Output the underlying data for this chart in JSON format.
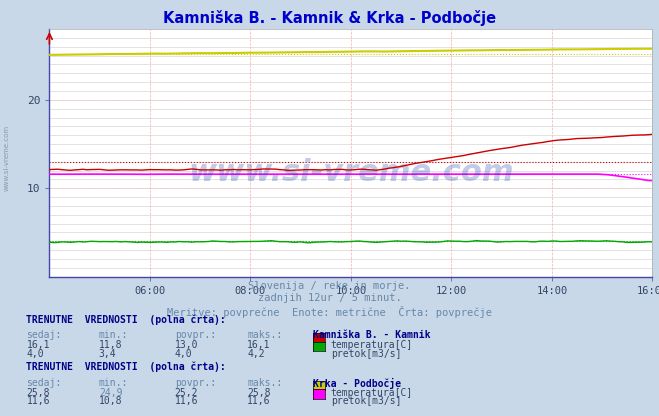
{
  "title": "Kamniška B. - Kamnik & Krka - Podbočje",
  "title_color": "#0000cc",
  "bg_color": "#c8d8e8",
  "plot_bg_color": "#ffffff",
  "xmin": 0,
  "xmax": 144,
  "ymin": 0,
  "ymax": 28,
  "ytick_positions": [
    10,
    20
  ],
  "ytick_labels": [
    "10",
    "20"
  ],
  "xtick_labels": [
    "06:00",
    "08:00",
    "10:00",
    "12:00",
    "14:00",
    "16:00"
  ],
  "xtick_positions": [
    24,
    48,
    72,
    96,
    120,
    144
  ],
  "watermark": "www.si-vreme.com",
  "subtitle1": "Slovenija / reke in morje.",
  "subtitle2": "zadnjih 12ur / 5 minut.",
  "subtitle3": "Meritve: povprečne  Enote: metrične  Črta: povprečje",
  "kamnik_temp_color": "#cc0000",
  "kamnik_temp_avg": 13.0,
  "kamnik_flow_color": "#00aa00",
  "kamnik_flow_avg": 4.0,
  "krka_temp_color": "#cccc00",
  "krka_temp_avg": 25.2,
  "krka_flow_color": "#ff00ff",
  "krka_flow_avg": 11.6,
  "n_points": 145,
  "text_color": "#6688aa",
  "label_color": "#0000aa",
  "bold_label_color": "#000088"
}
